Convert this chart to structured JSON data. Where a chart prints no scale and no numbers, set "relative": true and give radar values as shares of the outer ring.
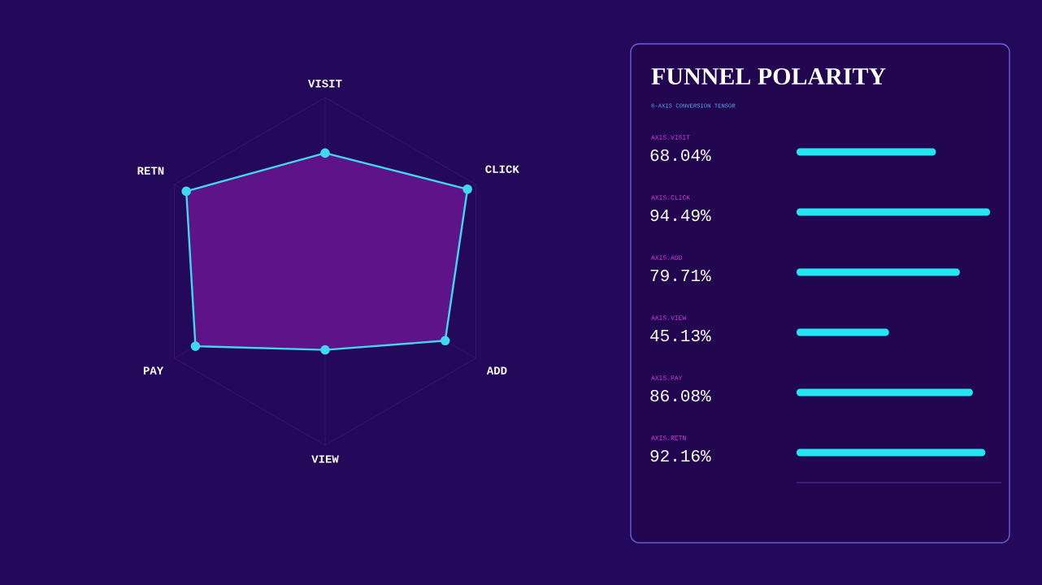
{
  "chart_data": [
    {
      "type": "radar",
      "categories": [
        "VISIT",
        "CLICK",
        "ADD",
        "VIEW",
        "PAY",
        "RETN"
      ],
      "values": [
        0.6804,
        0.9449,
        0.7971,
        0.4513,
        0.8608,
        0.9216
      ],
      "color": "#40d8f0",
      "relative": true,
      "grid": true,
      "marker": "circle"
    },
    {
      "type": "bar",
      "orientation": "horizontal",
      "title": "FUNNEL POLARITY",
      "subtitle": "6-AXIS CONVERSION TENSOR",
      "categories": [
        "AXIS.VISIT",
        "AXIS.CLICK",
        "AXIS.ADD",
        "AXIS.VIEW",
        "AXIS.PAY",
        "AXIS.RETN"
      ],
      "values": [
        68.04,
        94.49,
        79.71,
        45.13,
        86.08,
        92.16
      ],
      "value_labels": [
        "68.04%",
        "94.49%",
        "79.71%",
        "45.13%",
        "86.08%",
        "92.16%"
      ],
      "color": "#22e6f2",
      "xlim": [
        0,
        100
      ],
      "tick_labels": "y"
    }
  ]
}
